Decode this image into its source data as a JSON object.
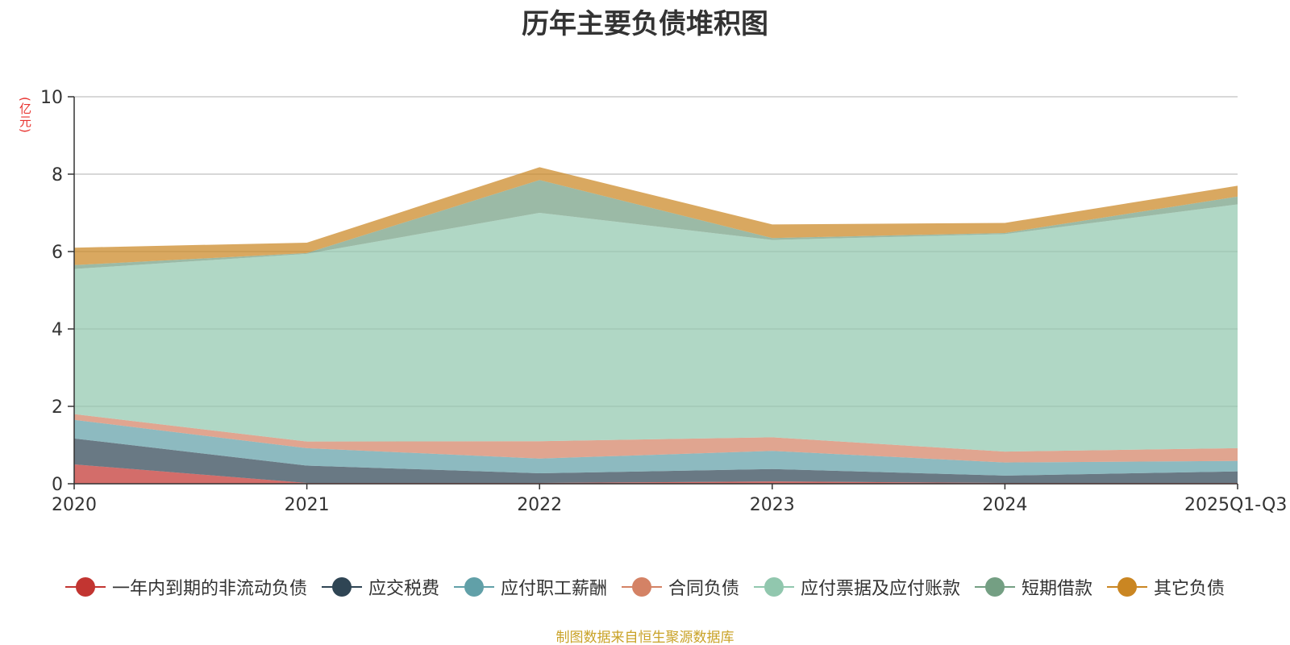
{
  "chart_data": {
    "type": "area",
    "stacked": true,
    "title": "历年主要负债堆积图",
    "ylabel": "(亿元)",
    "xlabel": "",
    "categories": [
      "2020",
      "2021",
      "2022",
      "2023",
      "2024",
      "2025Q1-Q3"
    ],
    "ylim": [
      0,
      10
    ],
    "yticks": [
      "0",
      "2",
      "4",
      "6",
      "8",
      "10"
    ],
    "grid": true,
    "legend_position": "bottom",
    "series": [
      {
        "name": "一年内到期的非流动负债",
        "color": "#c23531",
        "values": [
          0.5,
          0.02,
          0.02,
          0.06,
          0.02,
          0.02
        ]
      },
      {
        "name": "应交税费",
        "color": "#2f4554",
        "values": [
          0.67,
          0.45,
          0.25,
          0.32,
          0.19,
          0.3
        ]
      },
      {
        "name": "应付职工薪酬",
        "color": "#61a0a8",
        "values": [
          0.48,
          0.45,
          0.38,
          0.47,
          0.34,
          0.27
        ]
      },
      {
        "name": "合同负债",
        "color": "#d48265",
        "values": [
          0.15,
          0.17,
          0.45,
          0.35,
          0.28,
          0.33
        ]
      },
      {
        "name": "应付票据及应付账款",
        "color": "#91c7ae",
        "values": [
          3.75,
          4.85,
          5.9,
          5.1,
          5.62,
          6.3
        ]
      },
      {
        "name": "短期借款",
        "color": "#749f83",
        "values": [
          0.1,
          0.02,
          0.85,
          0.05,
          0.03,
          0.2
        ]
      },
      {
        "name": "其它负债",
        "color": "#ca8622",
        "values": [
          0.45,
          0.27,
          0.33,
          0.35,
          0.26,
          0.28
        ]
      }
    ]
  },
  "source_note": "制图数据来自恒生聚源数据库"
}
